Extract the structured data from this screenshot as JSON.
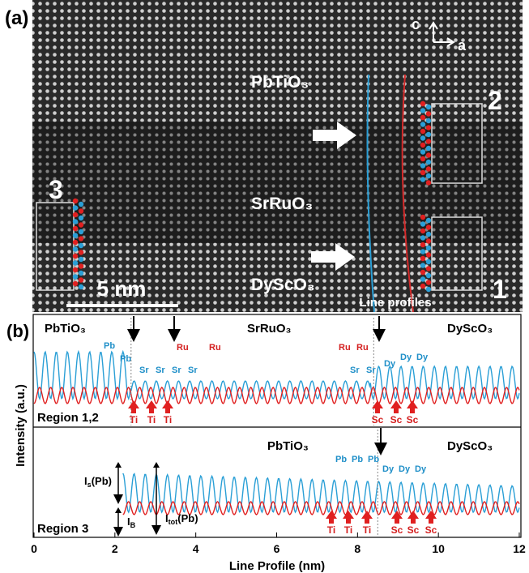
{
  "panel_a": {
    "label": "(a)",
    "layers": [
      "PbTiO₃",
      "SrRuO₃",
      "DyScO₃"
    ],
    "axes": [
      "c",
      "a"
    ],
    "regions": [
      "2",
      "3",
      "1"
    ],
    "scale_bar": "5 nm",
    "line_profiles": "Line profiles"
  },
  "panel_b": {
    "label": "(b)",
    "top": {
      "layers": [
        "PbTiO₃",
        "SrRuO₃",
        "DyScO₃"
      ],
      "blue_labels": [
        "Pb",
        "Pb",
        "Sr",
        "Sr",
        "Sr",
        "Sr",
        "Sr",
        "Sr",
        "Dy",
        "Dy",
        "Dy"
      ],
      "red_labels": [
        "Ru",
        "Ru",
        "Ru",
        "Ru"
      ],
      "bottom_labels": [
        "Ti",
        "Ti",
        "Ti",
        "Sc",
        "Sc",
        "Sc"
      ],
      "region": "Region 1,2"
    },
    "bottom": {
      "layers": [
        "PbTiO₃",
        "DyScO₃"
      ],
      "blue_labels": [
        "Pb",
        "Pb",
        "Pb",
        "Dy",
        "Dy",
        "Dy"
      ],
      "bottom_labels": [
        "Ti",
        "Ti",
        "Ti",
        "Sc",
        "Sc",
        "Sc"
      ],
      "region": "Region 3",
      "i_s": [
        "I",
        "s",
        "(Pb)"
      ],
      "i_b": [
        "I",
        "B"
      ],
      "i_tot": [
        "I",
        "tot",
        "(Pb)"
      ]
    }
  },
  "chart_data": {
    "type": "line",
    "xlabel": "Line Profile (nm)",
    "ylabel": "Intensity (a.u.)",
    "xlim": [
      0,
      12
    ],
    "xticks": [
      0,
      2,
      4,
      6,
      8,
      10,
      12
    ]
  }
}
